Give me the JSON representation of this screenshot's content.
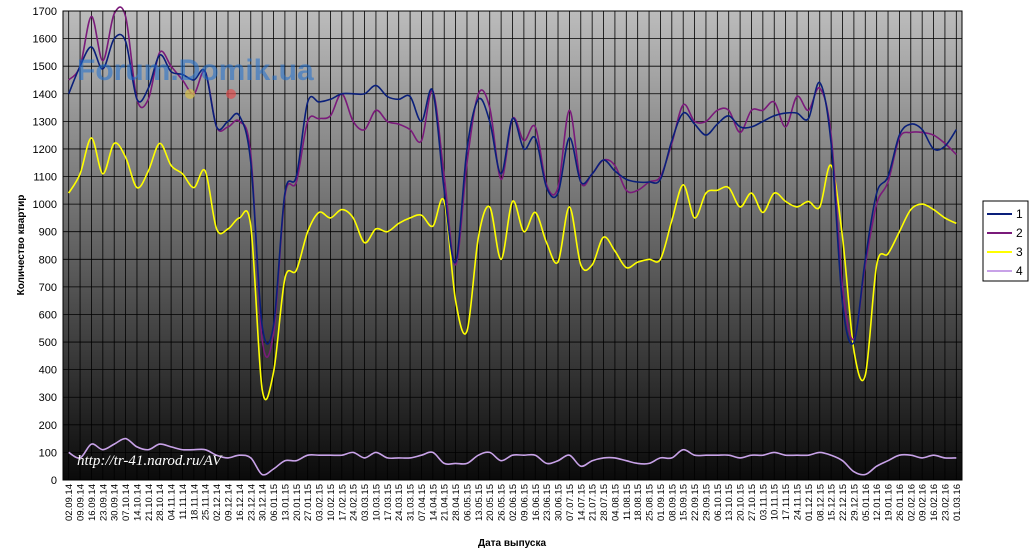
{
  "watermark": "Forum.Domik.ua",
  "annotation": "http://tr-41.narod.ru/AV",
  "chart_data": {
    "type": "line",
    "xlabel": "Дата выпуска",
    "ylabel": "Количество квартир",
    "ylim": [
      0,
      1700
    ],
    "ytick_step": 100,
    "grid": true,
    "legend_position": "right",
    "x": [
      "02.09.14",
      "09.09.14",
      "16.09.14",
      "23.09.14",
      "30.09.14",
      "07.10.14",
      "14.10.14",
      "21.10.14",
      "28.10.14",
      "04.11.14",
      "11.11.14",
      "18.11.14",
      "25.11.14",
      "02.12.14",
      "09.12.14",
      "16.12.14",
      "23.12.14",
      "30.12.14",
      "06.01.15",
      "13.01.15",
      "20.01.15",
      "27.01.15",
      "03.02.15",
      "10.02.15",
      "17.02.15",
      "24.02.15",
      "03.03.15",
      "10.03.15",
      "17.03.15",
      "24.03.15",
      "31.03.15",
      "07.04.15",
      "14.04.15",
      "21.04.15",
      "28.04.15",
      "06.05.15",
      "13.05.15",
      "20.05.15",
      "26.05.15",
      "02.06.15",
      "09.06.15",
      "16.06.15",
      "23.06.15",
      "30.06.15",
      "07.07.15",
      "14.07.15",
      "21.07.15",
      "28.07.15",
      "04.08.15",
      "11.08.15",
      "18.08.15",
      "25.08.15",
      "01.09.15",
      "08.09.15",
      "15.09.15",
      "22.09.15",
      "29.09.15",
      "06.10.15",
      "13.10.15",
      "20.10.15",
      "27.10.15",
      "03.11.15",
      "10.11.15",
      "17.11.15",
      "24.11.15",
      "01.12.15",
      "08.12.15",
      "15.12.15",
      "22.12.15",
      "29.12.15",
      "05.01.16",
      "12.01.16",
      "19.01.16",
      "26.01.16",
      "02.02.16",
      "09.02.16",
      "16.02.16",
      "23.02.16",
      "01.03.16"
    ],
    "series": [
      {
        "name": "1",
        "color": "#0a1f7a",
        "values": [
          1400,
          1500,
          1570,
          1490,
          1600,
          1590,
          1380,
          1420,
          1540,
          1480,
          1470,
          1450,
          1480,
          1280,
          1300,
          1320,
          1150,
          560,
          560,
          1040,
          1100,
          1370,
          1370,
          1380,
          1400,
          1400,
          1400,
          1430,
          1390,
          1380,
          1390,
          1300,
          1410,
          1050,
          790,
          1200,
          1380,
          1300,
          1110,
          1310,
          1200,
          1240,
          1060,
          1040,
          1240,
          1080,
          1110,
          1160,
          1120,
          1090,
          1080,
          1080,
          1090,
          1230,
          1330,
          1290,
          1250,
          1290,
          1320,
          1280,
          1280,
          1300,
          1320,
          1330,
          1330,
          1310,
          1440,
          1220,
          640,
          500,
          800,
          1040,
          1100,
          1250,
          1290,
          1270,
          1200,
          1210,
          1270
        ]
      },
      {
        "name": "2",
        "color": "#7a1a7a",
        "values": [
          1450,
          1500,
          1680,
          1520,
          1690,
          1680,
          1380,
          1380,
          1550,
          1500,
          1450,
          1400,
          1480,
          1280,
          1280,
          1300,
          1180,
          510,
          530,
          1030,
          1080,
          1300,
          1310,
          1320,
          1400,
          1300,
          1270,
          1340,
          1300,
          1290,
          1270,
          1230,
          1410,
          1100,
          780,
          1150,
          1400,
          1350,
          1090,
          1310,
          1230,
          1280,
          1070,
          1060,
          1340,
          1080,
          1110,
          1160,
          1140,
          1050,
          1050,
          1080,
          1100,
          1220,
          1360,
          1300,
          1300,
          1340,
          1340,
          1260,
          1340,
          1340,
          1370,
          1280,
          1390,
          1340,
          1420,
          1250,
          700,
          510,
          780,
          1000,
          1080,
          1240,
          1260,
          1260,
          1250,
          1220,
          1180
        ]
      },
      {
        "name": "3",
        "color": "#ffff00",
        "values": [
          1040,
          1110,
          1240,
          1110,
          1220,
          1170,
          1060,
          1120,
          1220,
          1140,
          1110,
          1060,
          1120,
          910,
          910,
          950,
          920,
          330,
          390,
          730,
          760,
          900,
          970,
          950,
          980,
          950,
          860,
          910,
          900,
          930,
          950,
          960,
          920,
          1010,
          650,
          540,
          880,
          990,
          800,
          1010,
          900,
          970,
          860,
          790,
          990,
          780,
          780,
          880,
          830,
          770,
          790,
          800,
          800,
          940,
          1070,
          950,
          1040,
          1050,
          1060,
          990,
          1040,
          970,
          1040,
          1010,
          990,
          1010,
          990,
          1140,
          880,
          470,
          380,
          780,
          820,
          900,
          980,
          1000,
          980,
          950,
          930
        ]
      },
      {
        "name": "4",
        "color": "#c8a2e8",
        "values": [
          100,
          80,
          130,
          110,
          130,
          150,
          120,
          110,
          130,
          120,
          110,
          110,
          110,
          90,
          80,
          90,
          80,
          20,
          40,
          70,
          70,
          90,
          90,
          90,
          90,
          100,
          80,
          100,
          80,
          80,
          80,
          90,
          100,
          60,
          60,
          60,
          90,
          100,
          70,
          90,
          90,
          90,
          60,
          70,
          90,
          50,
          70,
          80,
          80,
          70,
          60,
          60,
          80,
          80,
          110,
          90,
          90,
          90,
          90,
          80,
          90,
          90,
          100,
          90,
          90,
          90,
          100,
          90,
          70,
          30,
          20,
          50,
          70,
          90,
          90,
          80,
          90,
          80,
          80
        ]
      }
    ]
  }
}
